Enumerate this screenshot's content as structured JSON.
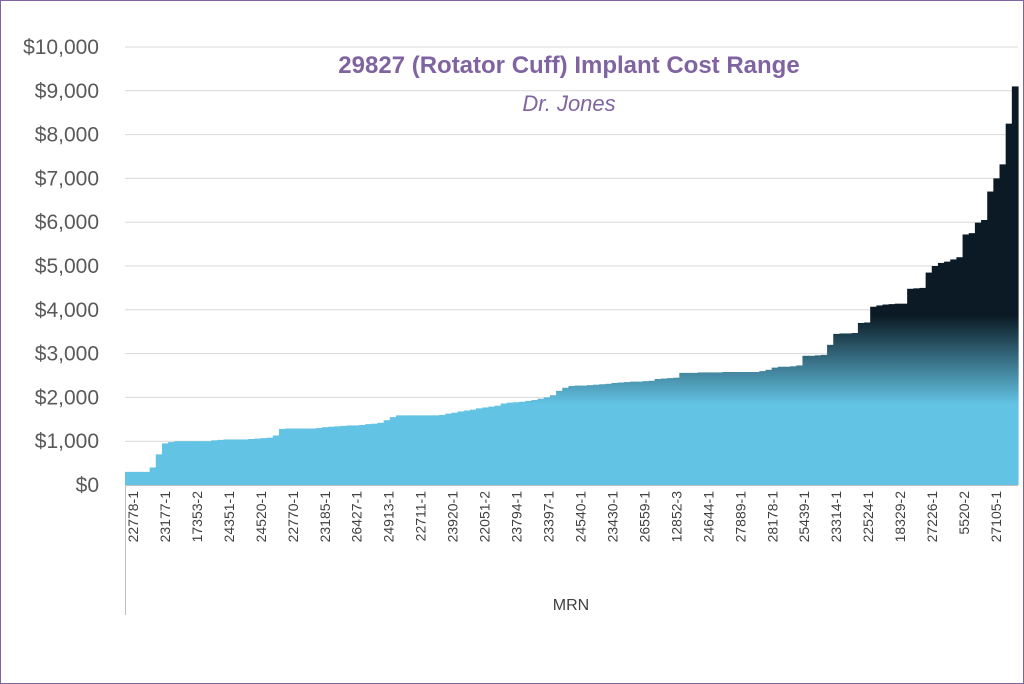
{
  "chart_data": {
    "type": "area",
    "title": "29827 (Rotator Cuff) Implant Cost Range",
    "subtitle": "Dr. Jones",
    "xlabel": "MRN",
    "ylabel": "",
    "ylim": [
      0,
      10000
    ],
    "ytick_labels": [
      "$0",
      "$1,000",
      "$2,000",
      "$3,000",
      "$4,000",
      "$5,000",
      "$6,000",
      "$7,000",
      "$8,000",
      "$9,000",
      "$10,000"
    ],
    "grid": true,
    "legend": "none",
    "colors": {
      "fill_light": "#63c3e4",
      "fill_dark": "#0b1a24",
      "title": "#8064a2",
      "grid": "#d9d9d9",
      "frame": "#8064a2"
    },
    "x_tick_labels": [
      "22778-1",
      "23177-1",
      "17353-2",
      "24351-1",
      "24520-1",
      "22770-1",
      "23185-1",
      "26427-1",
      "24913-1",
      "22711-1",
      "23920-1",
      "22051-2",
      "23794-1",
      "23397-1",
      "24540-1",
      "23430-1",
      "26559-1",
      "12852-3",
      "24644-1",
      "27889-1",
      "28178-1",
      "25439-1",
      "23314-1",
      "22524-1",
      "18329-2",
      "27226-1",
      "5520-2",
      "27105-1"
    ],
    "values": [
      300,
      300,
      300,
      300,
      400,
      700,
      950,
      980,
      1000,
      1000,
      1000,
      1000,
      1000,
      1000,
      1020,
      1030,
      1040,
      1040,
      1040,
      1040,
      1050,
      1060,
      1070,
      1080,
      1130,
      1280,
      1290,
      1290,
      1290,
      1290,
      1290,
      1300,
      1320,
      1330,
      1340,
      1350,
      1360,
      1360,
      1370,
      1390,
      1400,
      1420,
      1480,
      1550,
      1590,
      1590,
      1590,
      1590,
      1590,
      1590,
      1590,
      1600,
      1630,
      1650,
      1680,
      1700,
      1720,
      1750,
      1770,
      1790,
      1810,
      1860,
      1880,
      1890,
      1900,
      1920,
      1940,
      1970,
      2000,
      2050,
      2150,
      2220,
      2260,
      2270,
      2270,
      2280,
      2290,
      2300,
      2310,
      2330,
      2340,
      2350,
      2360,
      2360,
      2370,
      2380,
      2420,
      2430,
      2440,
      2450,
      2560,
      2560,
      2560,
      2570,
      2570,
      2570,
      2570,
      2580,
      2580,
      2580,
      2580,
      2580,
      2580,
      2600,
      2630,
      2680,
      2700,
      2700,
      2710,
      2730,
      2950,
      2950,
      2960,
      2970,
      3200,
      3450,
      3460,
      3460,
      3470,
      3700,
      3710,
      4070,
      4100,
      4120,
      4130,
      4140,
      4140,
      4480,
      4490,
      4500,
      4850,
      5000,
      5070,
      5100,
      5150,
      5200,
      5720,
      5750,
      5990,
      6050,
      6700,
      7000,
      7320,
      8250,
      9100
    ]
  }
}
